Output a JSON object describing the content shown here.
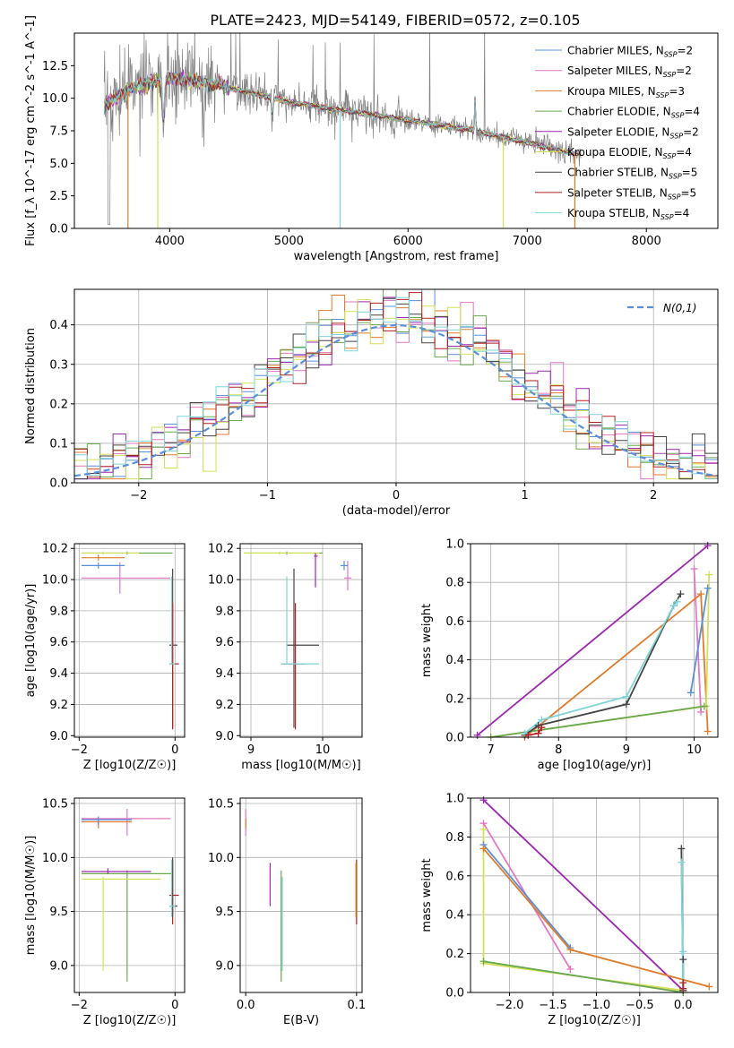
{
  "figure_title": "PLATE=2423, MJD=54149, FIBERID=0572, z=0.105",
  "colors": {
    "Chabrier MILES": "#5b8fdb",
    "Salpeter MILES": "#e377c2",
    "Kroupa MILES": "#e07b2a",
    "Chabrier ELODIE": "#6aa84f",
    "Salpeter ELODIE": "#9c27b0",
    "Kroupa ELODIE": "#d4e157",
    "Chabrier STELIB": "#444444",
    "Salpeter STELIB": "#b22222",
    "Kroupa STELIB": "#7fd4d8",
    "data": "#808080",
    "normal": "#5b8fdb"
  },
  "chart_data": [
    {
      "id": "spectrum",
      "type": "line",
      "title": "PLATE=2423, MJD=54149, FIBERID=0572, z=0.105",
      "xlabel": "wavelength [Angstrom, rest frame]",
      "ylabel": "Flux [f_λ 10^-17 erg cm^-2 s^-1 A^-1]",
      "xlim": [
        3200,
        8600
      ],
      "ylim": [
        0,
        15
      ],
      "xticks": [
        "4000",
        "5000",
        "6000",
        "7000",
        "8000"
      ],
      "yticks": [
        "0.0",
        "2.5",
        "5.0",
        "7.5",
        "10.0",
        "12.5"
      ],
      "grid": false,
      "legend_position": "top-right",
      "legend": [
        {
          "name": "Chabrier MILES",
          "nssp": "2"
        },
        {
          "name": "Salpeter MILES",
          "nssp": "2"
        },
        {
          "name": "Kroupa MILES",
          "nssp": "3"
        },
        {
          "name": "Chabrier ELODIE",
          "nssp": "4"
        },
        {
          "name": "Salpeter ELODIE",
          "nssp": "2"
        },
        {
          "name": "Kroupa ELODIE",
          "nssp": "4"
        },
        {
          "name": "Chabrier STELIB",
          "nssp": "5"
        },
        {
          "name": "Salpeter STELIB",
          "nssp": "5"
        },
        {
          "name": "Kroupa STELIB",
          "nssp": "4"
        }
      ],
      "continuum_x": [
        3450,
        3700,
        4000,
        4300,
        4600,
        5000,
        5500,
        6000,
        6500,
        7000,
        7300,
        7450
      ],
      "continuum_y": [
        9.5,
        10.8,
        11.6,
        11.2,
        10.6,
        9.7,
        9.0,
        8.3,
        7.6,
        6.6,
        5.9,
        5.7
      ]
    },
    {
      "id": "residuals",
      "type": "line",
      "xlabel": "(data-model)/error",
      "ylabel": "Normed distribution",
      "xlim": [
        -2.5,
        2.5
      ],
      "ylim": [
        0,
        0.49
      ],
      "xticks": [
        "−2",
        "−1",
        "0",
        "1",
        "2"
      ],
      "yticks": [
        "0.0",
        "0.1",
        "0.2",
        "0.3",
        "0.4"
      ],
      "grid": true,
      "legend_position": "top-right",
      "normal_label": "N(0,1)",
      "bin_width": 0.1
    },
    {
      "id": "age_vs_Z",
      "type": "scatter",
      "xlabel": "Z [log10(Z/Z☉)]",
      "ylabel": "age [log10(age/yr)]",
      "xlim": [
        -2.1,
        0.2
      ],
      "ylim": [
        8.99,
        10.23
      ],
      "xticks": [
        "−2",
        "0"
      ],
      "yticks": [
        "9.0",
        "9.2",
        "9.4",
        "9.6",
        "9.8",
        "10.0",
        "10.2"
      ],
      "grid": true,
      "crosses": [
        {
          "model": "Salpeter MILES",
          "x": -1.15,
          "y": 10.01,
          "x0": -1.95,
          "x1": -0.1,
          "y0": 9.91,
          "y1": 10.11
        },
        {
          "model": "Kroupa MILES",
          "x": -1.6,
          "y": 10.14,
          "x0": -1.95,
          "x1": -1.05,
          "y0": 10.12,
          "y1": 10.16
        },
        {
          "model": "Chabrier MILES",
          "x": -1.6,
          "y": 10.09,
          "x0": -1.95,
          "x1": -1.05,
          "y0": 10.07,
          "y1": 10.11
        },
        {
          "model": "Chabrier ELODIE",
          "x": -1.0,
          "y": 10.17,
          "x0": -1.95,
          "x1": -0.05,
          "y0": 10.16,
          "y1": 10.18
        },
        {
          "model": "Kroupa ELODIE",
          "x": -1.5,
          "y": 10.17,
          "x0": -1.95,
          "x1": -0.75,
          "y0": 10.16,
          "y1": 10.18
        },
        {
          "model": "Chabrier STELIB",
          "x": -0.05,
          "y": 9.58,
          "x0": -0.12,
          "x1": 0.05,
          "y0": 9.05,
          "y1": 10.07
        },
        {
          "model": "Salpeter STELIB",
          "x": -0.05,
          "y": 9.46,
          "x0": -0.12,
          "x1": 0.08,
          "y0": 9.04,
          "y1": 9.85
        },
        {
          "model": "Kroupa STELIB",
          "x": -0.07,
          "y": 9.46,
          "x0": -0.12,
          "x1": 0.0,
          "y0": 9.46,
          "y1": 10.02
        }
      ]
    },
    {
      "id": "age_vs_mass",
      "type": "scatter",
      "xlabel": "mass [log10(M/M☉)]",
      "ylabel": "",
      "xlim": [
        8.85,
        10.55
      ],
      "ylim": [
        8.99,
        10.23
      ],
      "xticks": [
        "9",
        "10"
      ],
      "yticks": [
        "9.0",
        "9.2",
        "9.4",
        "9.6",
        "9.8",
        "10.0",
        "10.2"
      ],
      "grid": true,
      "crosses": [
        {
          "model": "Chabrier ELODIE",
          "x": 9.5,
          "y": 10.17,
          "x0": 8.9,
          "x1": 10.0,
          "y0": 10.16,
          "y1": 10.18
        },
        {
          "model": "Kroupa ELODIE",
          "x": 9.4,
          "y": 10.17,
          "x0": 8.9,
          "x1": 9.95,
          "y0": 10.16,
          "y1": 10.18
        },
        {
          "model": "Salpeter ELODIE",
          "x": 9.9,
          "y": 10.15,
          "x0": 9.88,
          "x1": 9.93,
          "y0": 9.95,
          "y1": 10.17
        },
        {
          "model": "Salpeter MILES",
          "x": 10.35,
          "y": 10.01,
          "x0": 10.3,
          "x1": 10.4,
          "y0": 9.93,
          "y1": 10.12
        },
        {
          "model": "Chabrier MILES",
          "x": 10.3,
          "y": 10.09,
          "x0": 10.25,
          "x1": 10.35,
          "y0": 10.06,
          "y1": 10.12
        },
        {
          "model": "Chabrier STELIB",
          "x": 9.6,
          "y": 9.58,
          "x0": 9.5,
          "x1": 9.95,
          "y0": 9.05,
          "y1": 10.07
        },
        {
          "model": "Salpeter STELIB",
          "x": 9.62,
          "y": 9.46,
          "x0": 9.42,
          "x1": 9.75,
          "y0": 9.04,
          "y1": 9.85
        },
        {
          "model": "Kroupa STELIB",
          "x": 9.5,
          "y": 9.46,
          "x0": 9.42,
          "x1": 9.95,
          "y0": 9.46,
          "y1": 10.02
        }
      ]
    },
    {
      "id": "weight_vs_age",
      "type": "line",
      "xlabel": "age [log10(age/yr)]",
      "ylabel": "mass weight",
      "xlim": [
        6.7,
        10.35
      ],
      "ylim": [
        0,
        1
      ],
      "xticks": [
        "7",
        "8",
        "9",
        "10"
      ],
      "yticks": [
        "0.0",
        "0.2",
        "0.4",
        "0.6",
        "0.8",
        "1.0"
      ],
      "grid": true,
      "series": [
        {
          "model": "Salpeter ELODIE",
          "x": [
            6.8,
            10.2
          ],
          "y": [
            0.01,
            0.99
          ]
        },
        {
          "model": "Salpeter MILES",
          "x": [
            10.0,
            10.1
          ],
          "y": [
            0.87,
            0.13
          ]
        },
        {
          "model": "Kroupa MILES",
          "x": [
            7.5,
            10.1,
            10.2
          ],
          "y": [
            0.0,
            0.74,
            0.03
          ]
        },
        {
          "model": "Chabrier MILES",
          "x": [
            9.95,
            10.2
          ],
          "y": [
            0.23,
            0.77
          ]
        },
        {
          "model": "Kroupa ELODIE",
          "x": [
            7.0,
            10.18,
            10.22
          ],
          "y": [
            0.0,
            0.16,
            0.84
          ]
        },
        {
          "model": "Chabrier ELODIE",
          "x": [
            7.0,
            10.15
          ],
          "y": [
            0.0,
            0.16
          ]
        },
        {
          "model": "Chabrier STELIB",
          "x": [
            7.5,
            7.7,
            9.0,
            9.7,
            9.8
          ],
          "y": [
            0.01,
            0.06,
            0.17,
            0.68,
            0.74
          ]
        },
        {
          "model": "Kroupa STELIB",
          "x": [
            7.5,
            7.75,
            9.0,
            9.7,
            9.75
          ],
          "y": [
            0.02,
            0.09,
            0.21,
            0.68,
            0.7
          ]
        },
        {
          "model": "Salpeter STELIB",
          "x": [
            7.55,
            7.7,
            7.75
          ],
          "y": [
            0.01,
            0.02,
            0.05
          ]
        }
      ]
    },
    {
      "id": "mass_vs_Z",
      "type": "scatter",
      "xlabel": "Z [log10(Z/Z☉)]",
      "ylabel": "mass [log10(M/M☉)]",
      "xlim": [
        -2.1,
        0.2
      ],
      "ylim": [
        8.75,
        10.55
      ],
      "xticks": [
        "−2",
        "0"
      ],
      "yticks": [
        "9.0",
        "9.5",
        "10.0",
        "10.5"
      ],
      "grid": true,
      "crosses": [
        {
          "model": "Salpeter MILES",
          "x": -1.0,
          "y": 10.36,
          "x0": -1.95,
          "x1": -0.1,
          "y0": 10.2,
          "y1": 10.45
        },
        {
          "model": "Kroupa MILES",
          "x": -1.6,
          "y": 10.33,
          "x0": -1.95,
          "x1": -0.9,
          "y0": 10.27,
          "y1": 10.36
        },
        {
          "model": "Chabrier MILES",
          "x": -1.6,
          "y": 10.35,
          "x0": -1.95,
          "x1": -0.9,
          "y0": 10.3,
          "y1": 10.38
        },
        {
          "model": "Chabrier ELODIE",
          "x": -1.0,
          "y": 9.85,
          "x0": -1.95,
          "x1": -0.05,
          "y0": 8.85,
          "y1": 9.88
        },
        {
          "model": "Salpeter ELODIE",
          "x": -1.4,
          "y": 9.87,
          "x0": -1.95,
          "x1": -0.5,
          "y0": 9.85,
          "y1": 9.9
        },
        {
          "model": "Kroupa ELODIE",
          "x": -1.5,
          "y": 9.8,
          "x0": -1.95,
          "x1": -0.3,
          "y0": 8.95,
          "y1": 9.82
        },
        {
          "model": "Salpeter STELIB",
          "x": -0.05,
          "y": 9.65,
          "x0": -0.12,
          "x1": 0.08,
          "y0": 9.38,
          "y1": 9.98
        },
        {
          "model": "Chabrier STELIB",
          "x": -0.05,
          "y": 9.55,
          "x0": -0.12,
          "x1": 0.05,
          "y0": 9.45,
          "y1": 10.0
        },
        {
          "model": "Kroupa STELIB",
          "x": -0.07,
          "y": 9.55,
          "x0": -0.12,
          "x1": 0.0,
          "y0": 9.45,
          "y1": 9.98
        }
      ]
    },
    {
      "id": "mass_vs_ebv",
      "type": "scatter",
      "xlabel": "E(B-V)",
      "ylabel": "",
      "xlim": [
        -0.005,
        0.105
      ],
      "ylim": [
        8.75,
        10.55
      ],
      "xticks": [
        "0.0",
        "0.1"
      ],
      "yticks": [
        "9.0",
        "9.5",
        "10.0",
        "10.5"
      ],
      "grid": true,
      "crosses": [
        {
          "model": "Salpeter MILES",
          "x": 0.0,
          "y": 10.36,
          "x0": 0.0,
          "x1": 0.0,
          "y0": 10.2,
          "y1": 10.45
        },
        {
          "model": "Kroupa MILES",
          "x": 0.0,
          "y": 10.3,
          "x0": 0.0,
          "x1": 0.0,
          "y0": 10.27,
          "y1": 10.36
        },
        {
          "model": "Salpeter ELODIE",
          "x": 0.022,
          "y": 9.85,
          "x0": 0.022,
          "x1": 0.022,
          "y0": 9.55,
          "y1": 9.95
        },
        {
          "model": "Chabrier ELODIE",
          "x": 0.032,
          "y": 9.85,
          "x0": 0.032,
          "x1": 0.032,
          "y0": 8.85,
          "y1": 9.88
        },
        {
          "model": "Kroupa STELIB",
          "x": 0.033,
          "y": 9.55,
          "x0": 0.033,
          "x1": 0.033,
          "y0": 8.95,
          "y1": 9.82
        },
        {
          "model": "Salpeter STELIB",
          "x": 0.1,
          "y": 9.65,
          "x0": 0.1,
          "x1": 0.1,
          "y0": 9.38,
          "y1": 9.98
        },
        {
          "model": "Kroupa ELODIE",
          "x": 0.099,
          "y": 9.6,
          "x0": 0.099,
          "x1": 0.099,
          "y0": 9.45,
          "y1": 9.95
        }
      ]
    },
    {
      "id": "weight_vs_Z",
      "type": "line",
      "xlabel": "Z [log10(Z/Z☉)]",
      "ylabel": "mass weight",
      "xlim": [
        -2.45,
        0.4
      ],
      "ylim": [
        0,
        1
      ],
      "xticks": [
        "−2.0",
        "−1.5",
        "−1.0",
        "−0.5",
        "0.0"
      ],
      "yticks": [
        "0.0",
        "0.2",
        "0.4",
        "0.6",
        "0.8",
        "1.0"
      ],
      "grid": true,
      "series": [
        {
          "model": "Salpeter ELODIE",
          "x": [
            -2.3,
            0.0
          ],
          "y": [
            0.99,
            0.01
          ]
        },
        {
          "model": "Salpeter MILES",
          "x": [
            -2.3,
            -1.3
          ],
          "y": [
            0.87,
            0.12
          ]
        },
        {
          "model": "Chabrier MILES",
          "x": [
            -2.3,
            -1.3
          ],
          "y": [
            0.76,
            0.23
          ]
        },
        {
          "model": "Kroupa MILES",
          "x": [
            -2.3,
            -1.3,
            0.3
          ],
          "y": [
            0.74,
            0.22,
            0.03
          ]
        },
        {
          "model": "Kroupa ELODIE",
          "x": [
            -2.3,
            -2.3,
            0.0
          ],
          "y": [
            0.84,
            0.15,
            0.01
          ]
        },
        {
          "model": "Chabrier ELODIE",
          "x": [
            -2.3,
            0.0
          ],
          "y": [
            0.16,
            0.0
          ]
        },
        {
          "model": "Chabrier STELIB",
          "x": [
            -0.02,
            0.0,
            0.0
          ],
          "y": [
            0.74,
            0.01,
            0.17
          ]
        },
        {
          "model": "Kroupa STELIB",
          "x": [
            -0.02,
            0.0,
            0.0
          ],
          "y": [
            0.67,
            0.02,
            0.21
          ]
        },
        {
          "model": "Salpeter STELIB",
          "x": [
            0.0,
            0.0
          ],
          "y": [
            0.02,
            0.05
          ]
        }
      ]
    }
  ]
}
